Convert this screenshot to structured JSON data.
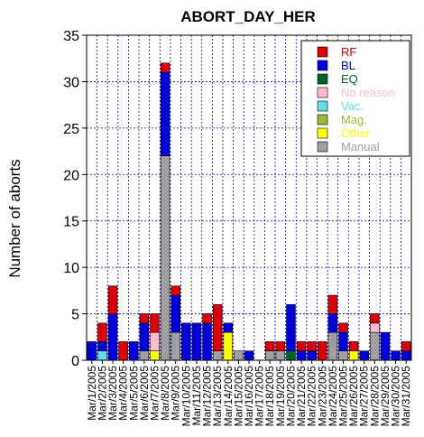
{
  "chart_data": {
    "type": "bar",
    "stacked": true,
    "title": "ABORT_DAY_HER",
    "xlabel": "",
    "ylabel": "Number of aborts",
    "ylim": [
      0,
      35
    ],
    "yticks": [
      0,
      5,
      10,
      15,
      20,
      25,
      30,
      35
    ],
    "grid": true,
    "legend_position": "top-right",
    "categories": [
      "Mar/1/2005",
      "Mar/2/2005",
      "Mar/3/2005",
      "Mar/4/2005",
      "Mar/5/2005",
      "Mar/6/2005",
      "Mar/7/2005",
      "Mar/8/2005",
      "Mar/9/2005",
      "Mar/10/2005",
      "Mar/11/2005",
      "Mar/12/2005",
      "Mar/13/2005",
      "Mar/14/2005",
      "Mar/15/2005",
      "Mar/16/2005",
      "Mar/17/2005",
      "Mar/18/2005",
      "Mar/19/2005",
      "Mar/20/2005",
      "Mar/21/2005",
      "Mar/22/2005",
      "Mar/23/2005",
      "Mar/24/2005",
      "Mar/25/2005",
      "Mar/26/2005",
      "Mar/27/2005",
      "Mar/28/2005",
      "Mar/29/2005",
      "Mar/30/2005",
      "Mar/31/2005"
    ],
    "series": [
      {
        "name": "Manual",
        "color": "#a0a0a0",
        "values": [
          0,
          0,
          0,
          0,
          0,
          1,
          0,
          22,
          3,
          0,
          0,
          0,
          1,
          0,
          1,
          0,
          0,
          1,
          1,
          0,
          0,
          0,
          0,
          3,
          1,
          0,
          0,
          3,
          0,
          0,
          0
        ]
      },
      {
        "name": "Other",
        "color": "#ffff00",
        "values": [
          0,
          0,
          0,
          0,
          0,
          0,
          1,
          0,
          0,
          0,
          0,
          0,
          0,
          3,
          0,
          0,
          0,
          0,
          0,
          0,
          0,
          0,
          0,
          0,
          0,
          1,
          0,
          0,
          0,
          0,
          0
        ]
      },
      {
        "name": "Mag.",
        "color": "#99bb33",
        "values": [
          0,
          0,
          0,
          0,
          0,
          0,
          0,
          0,
          0,
          0,
          0,
          0,
          0,
          0,
          0,
          0,
          0,
          0,
          0,
          0,
          0,
          0,
          0,
          0,
          0,
          0,
          0,
          0,
          0,
          0,
          0
        ]
      },
      {
        "name": "Vac.",
        "color": "#66ddee",
        "values": [
          0,
          1,
          0,
          0,
          0,
          0,
          0,
          0,
          0,
          0,
          0,
          0,
          0,
          0,
          0,
          0,
          0,
          0,
          0,
          0,
          0,
          0,
          0,
          0,
          0,
          0,
          0,
          0,
          0,
          0,
          0
        ]
      },
      {
        "name": "No reason",
        "color": "#ffbbcc",
        "values": [
          0,
          0,
          0,
          0,
          0,
          0,
          2,
          0,
          0,
          0,
          0,
          0,
          0,
          0,
          0,
          0,
          0,
          0,
          0,
          0,
          0,
          0,
          0,
          0,
          0,
          0,
          0,
          1,
          0,
          0,
          0
        ]
      },
      {
        "name": "EQ",
        "color": "#006622",
        "values": [
          0,
          0,
          0,
          0,
          0,
          0,
          0,
          0,
          0,
          0,
          0,
          0,
          0,
          0,
          0,
          0,
          0,
          0,
          0,
          1,
          0,
          0,
          0,
          0,
          0,
          0,
          0,
          0,
          0,
          0,
          0
        ]
      },
      {
        "name": "BL",
        "color": "#0000dd",
        "values": [
          2,
          1,
          5,
          0,
          2,
          3,
          0,
          9,
          4,
          4,
          4,
          4,
          0,
          1,
          0,
          1,
          0,
          0,
          0,
          5,
          1,
          1,
          0,
          2,
          2,
          0,
          1,
          0,
          3,
          1,
          1
        ]
      },
      {
        "name": "RF",
        "color": "#dd0000",
        "values": [
          0,
          2,
          3,
          2,
          0,
          1,
          2,
          1,
          1,
          0,
          0,
          1,
          5,
          0,
          0,
          0,
          0,
          1,
          1,
          0,
          1,
          1,
          2,
          2,
          1,
          1,
          0,
          1,
          0,
          0,
          1
        ]
      }
    ],
    "legend_order": [
      "RF",
      "BL",
      "EQ",
      "No reason",
      "Vac.",
      "Mag.",
      "Other",
      "Manual"
    ]
  }
}
